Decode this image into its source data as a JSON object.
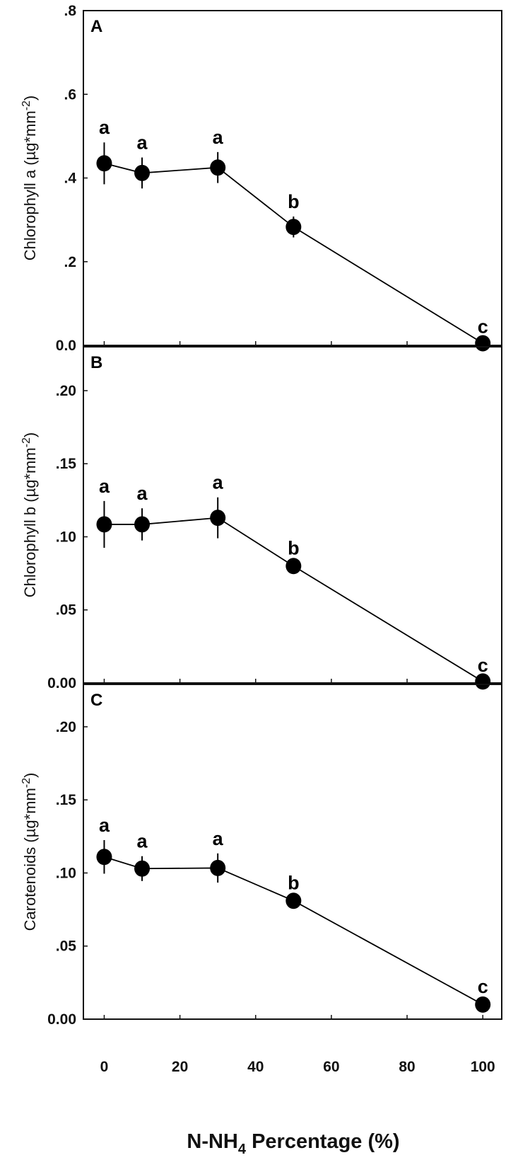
{
  "chart_data": {
    "type": "line",
    "shared_x": {
      "values": [
        0,
        10,
        30,
        50,
        100
      ],
      "ticks": [
        0,
        20,
        40,
        60,
        80,
        100
      ],
      "tick_labels": [
        "0",
        "20",
        "40",
        "60",
        "80",
        "100"
      ],
      "xlim": [
        -5.5,
        105
      ],
      "xlabel_main": "N-NH",
      "xlabel_sub": "4",
      "xlabel_rest": " Percentage (%)"
    },
    "panels": [
      {
        "panel_label": "A",
        "ylabel": "Chlorophyll a (µg*mm",
        "ylabel_sup": "-2",
        "ylabel_close": ")",
        "ylim": [
          0,
          0.8
        ],
        "yticks": [
          0,
          0.2,
          0.4,
          0.6,
          0.8
        ],
        "ytick_labels": [
          "0.0",
          ".2",
          ".4",
          ".6",
          ".8"
        ],
        "values": [
          0.435,
          0.412,
          0.425,
          0.283,
          0.005
        ],
        "errors": [
          0.05,
          0.037,
          0.037,
          0.025,
          0.004
        ],
        "letters": [
          "a",
          "a",
          "a",
          "b",
          "c"
        ]
      },
      {
        "panel_label": "B",
        "ylabel": "Chlorophyll b (µg*mm",
        "ylabel_sup": "-2",
        "ylabel_close": ")",
        "ylim": [
          0,
          0.23
        ],
        "yticks": [
          0,
          0.05,
          0.1,
          0.15,
          0.2
        ],
        "ytick_labels": [
          "0.00",
          ".05",
          ".10",
          ".15",
          ".20"
        ],
        "values": [
          0.1085,
          0.1085,
          0.113,
          0.08,
          0.001
        ],
        "errors": [
          0.016,
          0.011,
          0.014,
          0.002,
          0.001
        ],
        "letters": [
          "a",
          "a",
          "a",
          "b",
          "c"
        ]
      },
      {
        "panel_label": "C",
        "ylabel": "Carotenoids (µg*mm",
        "ylabel_sup": "-2",
        "ylabel_close": ")",
        "ylim": [
          0,
          0.229
        ],
        "yticks": [
          0,
          0.05,
          0.1,
          0.15,
          0.2
        ],
        "ytick_labels": [
          "0.00",
          ".05",
          ".10",
          ".15",
          ".20"
        ],
        "values": [
          0.111,
          0.103,
          0.1034,
          0.081,
          0.01
        ],
        "errors": [
          0.0115,
          0.0085,
          0.01,
          0.002,
          0.002
        ],
        "letters": [
          "a",
          "a",
          "a",
          "b",
          "c"
        ]
      }
    ],
    "marker_color": "#000000",
    "grid": false,
    "legend": "none"
  }
}
